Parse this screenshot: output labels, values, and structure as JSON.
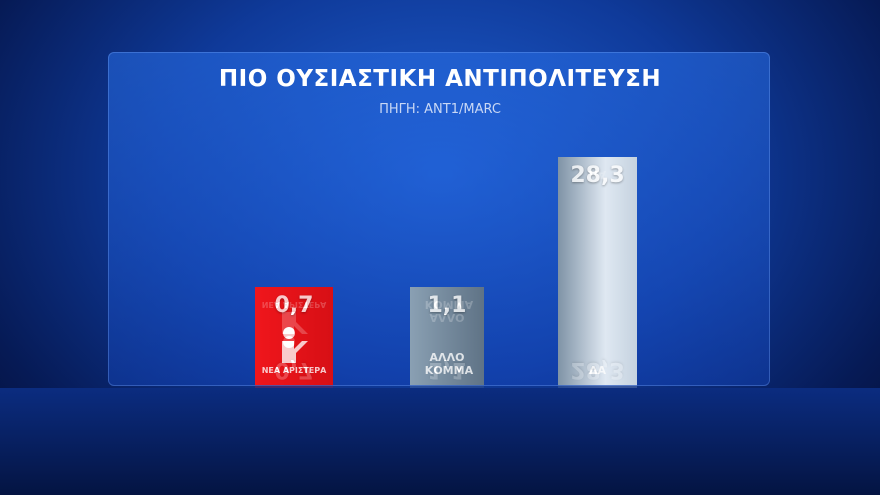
{
  "chart_data": {
    "type": "bar",
    "title": "ΠΙΟ ΟΥΣΙΑΣΤΙΚΗ ΑΝΤΙΠΟΛΙΤΕΥΣΗ",
    "subtitle": "ΠΗΓΗ: ΑΝΤ1/MARC",
    "categories": [
      "ΝΕΑ ΑΡΙΣΤΕΡΑ",
      "ΑΛΛΟ ΚΟΜΜΑ",
      "ΔΑ"
    ],
    "values": [
      0.7,
      1.1,
      28.3
    ],
    "value_labels": [
      "0,7",
      "1,1",
      "28,3"
    ],
    "colors": [
      "#e8141b",
      "#6c8193",
      "#a8b8c8"
    ],
    "legend": "none",
    "grid": false
  }
}
